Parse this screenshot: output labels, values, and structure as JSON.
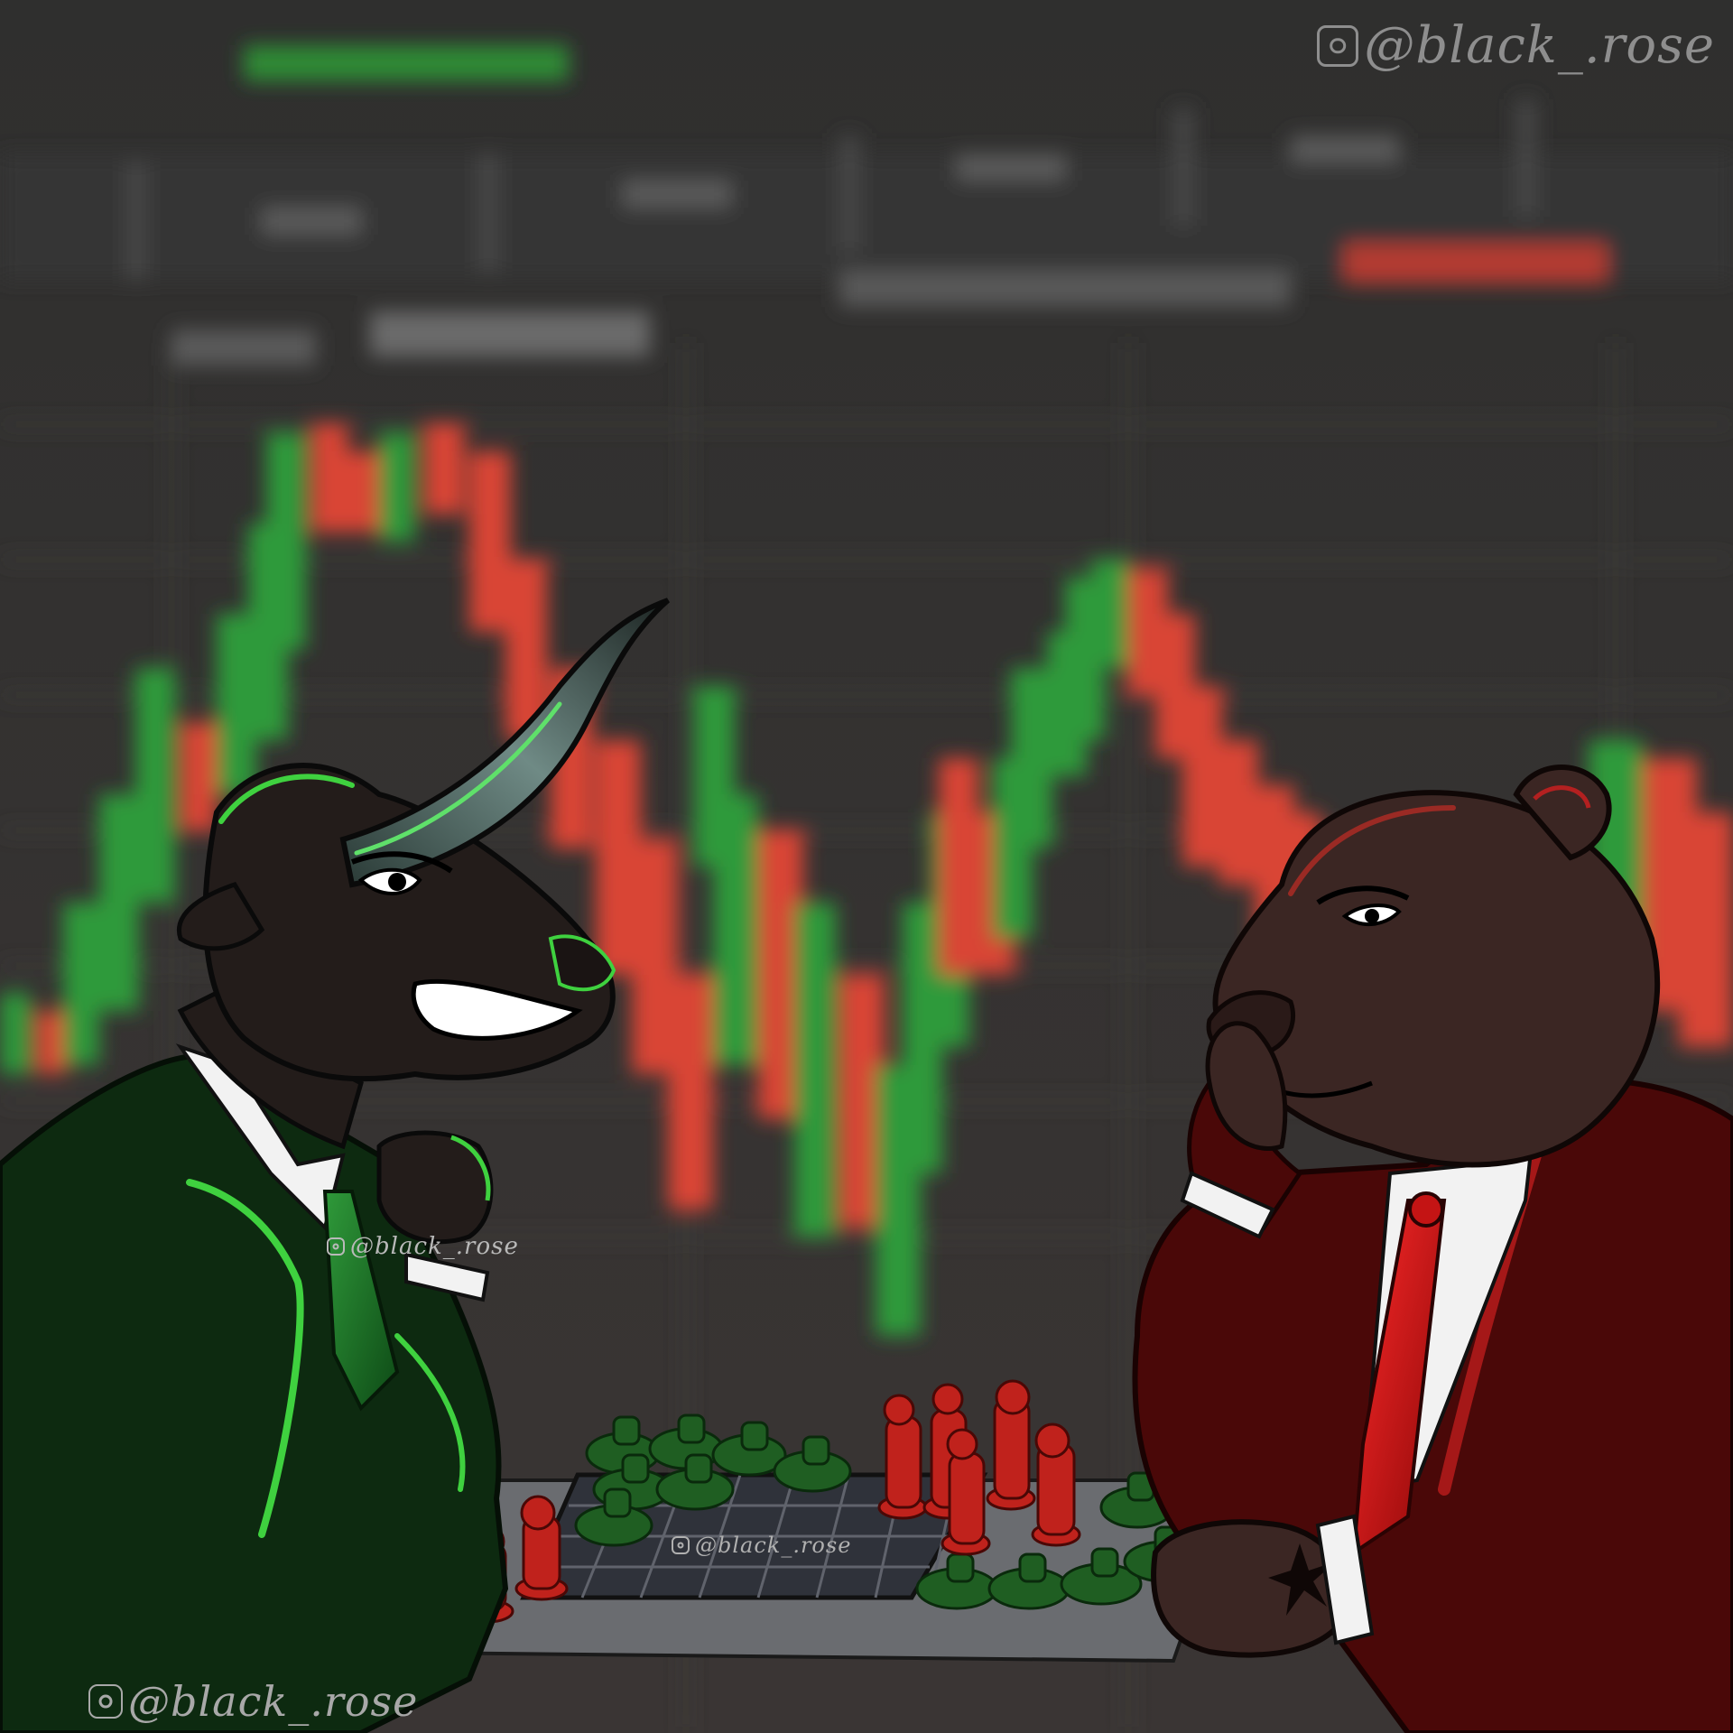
{
  "watermarks": {
    "top_right": "@black_.rose",
    "bottom_left": "@black_.rose",
    "on_tie": "@black_.rose",
    "on_board": "@black_.rose"
  },
  "icons": {
    "watermark_icon": "instagram-icon"
  },
  "colors": {
    "background": "#2e2c2b",
    "bull_candle": "#2f9a3a",
    "bear_candle": "#d94434",
    "bull_suit": "#0d2a10",
    "bull_accent": "#3fd13f",
    "bear_suit": "#5a0a0a",
    "bear_fur": "#3b2623",
    "tie_red": "#c41414",
    "board": "#3a3d44"
  },
  "scene": {
    "left_figure": "bull",
    "right_figure": "bear",
    "activity": "chess",
    "background": "blurred candlestick chart"
  }
}
